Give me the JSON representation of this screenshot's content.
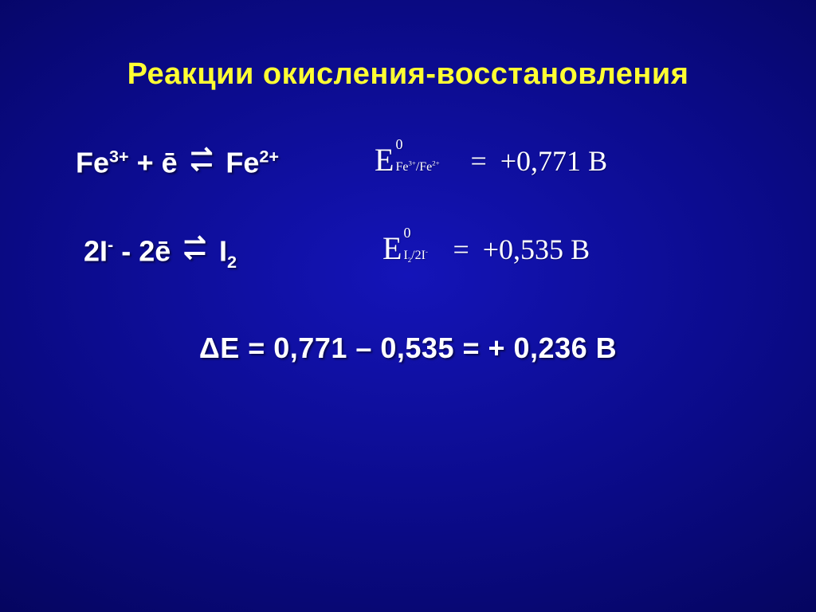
{
  "colors": {
    "title": "#ffff33",
    "text": "#ffffff",
    "bg_center": "#1414b8",
    "bg_mid": "#0b0b8a",
    "bg_edge": "#050560"
  },
  "title": "Реакции окисления-восстановления",
  "rows": [
    {
      "left_prefix": "Fe",
      "left_sup1": "3+",
      "left_op": " + ē ",
      "left_suffix": "Fe",
      "left_sup2": "2+",
      "E_sub_html": "Fe<sup class='dbsup'>3+</sup>/Fe<sup class='dbsup'>2+</sup>",
      "E_value": "+0,771",
      "E_unit": "В",
      "E_sub_pad": "88px"
    },
    {
      "left_prefix": "2I",
      "left_sup1": "-",
      "left_op": " - 2ē ",
      "left_suffix": "I",
      "left_sub2": "2",
      "E_sub_html": "I<sub class='dbsub'>2</sub>/2I<sup class='dbsup'>-</sup>",
      "E_value": "+0,535",
      "E_unit": "В",
      "E_sub_pad": "56px"
    }
  ],
  "delta_label": "ΔЕ",
  "delta_expr": " = 0,771 – 0,535 = + 0,236 В"
}
